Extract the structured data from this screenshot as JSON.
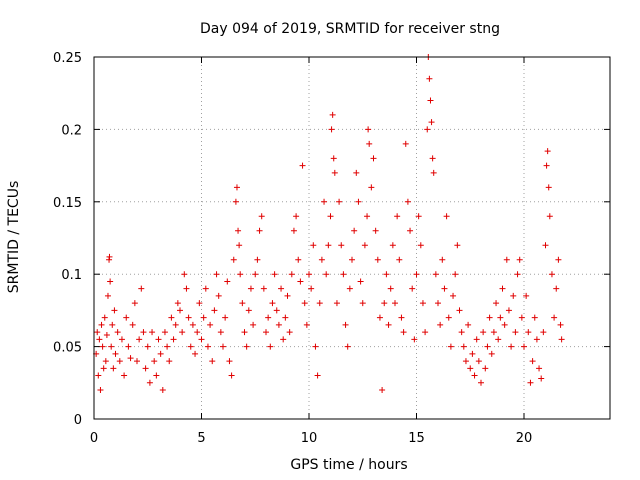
{
  "chart_data": {
    "type": "scatter",
    "title": "Day 094 of 2019, SRMTID for receiver stng",
    "xlabel": "GPS time / hours",
    "ylabel": "SRMTID / TECUs",
    "xlim": [
      0,
      24
    ],
    "ylim": [
      0,
      0.25
    ],
    "xticks": [
      0,
      5,
      10,
      15,
      20
    ],
    "yticks": [
      0,
      0.05,
      0.1,
      0.15,
      0.2,
      0.25
    ],
    "xtick_labels": [
      "0",
      "5",
      "10",
      "15",
      "20"
    ],
    "ytick_labels": [
      "0",
      "0.05",
      "0.1",
      "0.15",
      "0.2",
      "0.25"
    ],
    "grid": true,
    "marker": "+",
    "color": "#e00000",
    "series": [
      {
        "name": "stng",
        "points": [
          [
            0.1,
            0.045
          ],
          [
            0.15,
            0.06
          ],
          [
            0.2,
            0.03
          ],
          [
            0.25,
            0.055
          ],
          [
            0.3,
            0.02
          ],
          [
            0.35,
            0.065
          ],
          [
            0.4,
            0.05
          ],
          [
            0.45,
            0.035
          ],
          [
            0.5,
            0.07
          ],
          [
            0.55,
            0.04
          ],
          [
            0.6,
            0.058
          ],
          [
            0.65,
            0.085
          ],
          [
            0.7,
            0.11
          ],
          [
            0.72,
            0.112
          ],
          [
            0.75,
            0.095
          ],
          [
            0.8,
            0.05
          ],
          [
            0.85,
            0.065
          ],
          [
            0.9,
            0.035
          ],
          [
            0.95,
            0.075
          ],
          [
            1.0,
            0.045
          ],
          [
            1.1,
            0.06
          ],
          [
            1.2,
            0.04
          ],
          [
            1.3,
            0.055
          ],
          [
            1.4,
            0.03
          ],
          [
            1.5,
            0.07
          ],
          [
            1.6,
            0.05
          ],
          [
            1.7,
            0.042
          ],
          [
            1.8,
            0.065
          ],
          [
            1.9,
            0.08
          ],
          [
            2.0,
            0.04
          ],
          [
            2.1,
            0.055
          ],
          [
            2.2,
            0.09
          ],
          [
            2.3,
            0.06
          ],
          [
            2.4,
            0.035
          ],
          [
            2.5,
            0.05
          ],
          [
            2.6,
            0.025
          ],
          [
            2.7,
            0.06
          ],
          [
            2.8,
            0.04
          ],
          [
            2.9,
            0.03
          ],
          [
            3.0,
            0.055
          ],
          [
            3.1,
            0.045
          ],
          [
            3.2,
            0.02
          ],
          [
            3.3,
            0.06
          ],
          [
            3.4,
            0.05
          ],
          [
            3.5,
            0.04
          ],
          [
            3.6,
            0.07
          ],
          [
            3.7,
            0.055
          ],
          [
            3.8,
            0.065
          ],
          [
            3.9,
            0.08
          ],
          [
            4.0,
            0.075
          ],
          [
            4.1,
            0.06
          ],
          [
            4.2,
            0.1
          ],
          [
            4.3,
            0.09
          ],
          [
            4.4,
            0.07
          ],
          [
            4.5,
            0.05
          ],
          [
            4.6,
            0.065
          ],
          [
            4.7,
            0.045
          ],
          [
            4.8,
            0.06
          ],
          [
            4.9,
            0.08
          ],
          [
            5.0,
            0.055
          ],
          [
            5.1,
            0.07
          ],
          [
            5.2,
            0.09
          ],
          [
            5.3,
            0.05
          ],
          [
            5.4,
            0.065
          ],
          [
            5.5,
            0.04
          ],
          [
            5.6,
            0.075
          ],
          [
            5.7,
            0.1
          ],
          [
            5.8,
            0.085
          ],
          [
            5.9,
            0.06
          ],
          [
            6.0,
            0.05
          ],
          [
            6.1,
            0.07
          ],
          [
            6.2,
            0.095
          ],
          [
            6.3,
            0.04
          ],
          [
            6.4,
            0.03
          ],
          [
            6.5,
            0.11
          ],
          [
            6.6,
            0.15
          ],
          [
            6.65,
            0.16
          ],
          [
            6.7,
            0.13
          ],
          [
            6.75,
            0.12
          ],
          [
            6.8,
            0.1
          ],
          [
            6.9,
            0.08
          ],
          [
            7.0,
            0.06
          ],
          [
            7.1,
            0.05
          ],
          [
            7.2,
            0.075
          ],
          [
            7.3,
            0.09
          ],
          [
            7.4,
            0.065
          ],
          [
            7.5,
            0.1
          ],
          [
            7.6,
            0.11
          ],
          [
            7.7,
            0.13
          ],
          [
            7.8,
            0.14
          ],
          [
            7.9,
            0.09
          ],
          [
            8.0,
            0.06
          ],
          [
            8.1,
            0.07
          ],
          [
            8.2,
            0.05
          ],
          [
            8.3,
            0.08
          ],
          [
            8.4,
            0.1
          ],
          [
            8.5,
            0.075
          ],
          [
            8.6,
            0.065
          ],
          [
            8.7,
            0.09
          ],
          [
            8.8,
            0.055
          ],
          [
            8.9,
            0.07
          ],
          [
            9.0,
            0.085
          ],
          [
            9.1,
            0.06
          ],
          [
            9.2,
            0.1
          ],
          [
            9.3,
            0.13
          ],
          [
            9.4,
            0.14
          ],
          [
            9.5,
            0.11
          ],
          [
            9.6,
            0.095
          ],
          [
            9.7,
            0.175
          ],
          [
            9.8,
            0.08
          ],
          [
            9.9,
            0.065
          ],
          [
            10.0,
            0.1
          ],
          [
            10.1,
            0.09
          ],
          [
            10.2,
            0.12
          ],
          [
            10.3,
            0.05
          ],
          [
            10.4,
            0.03
          ],
          [
            10.5,
            0.08
          ],
          [
            10.6,
            0.11
          ],
          [
            10.7,
            0.15
          ],
          [
            10.8,
            0.1
          ],
          [
            10.9,
            0.12
          ],
          [
            11.0,
            0.14
          ],
          [
            11.05,
            0.2
          ],
          [
            11.1,
            0.21
          ],
          [
            11.15,
            0.18
          ],
          [
            11.2,
            0.17
          ],
          [
            11.3,
            0.08
          ],
          [
            11.4,
            0.15
          ],
          [
            11.5,
            0.12
          ],
          [
            11.6,
            0.1
          ],
          [
            11.7,
            0.065
          ],
          [
            11.8,
            0.05
          ],
          [
            11.9,
            0.09
          ],
          [
            12.0,
            0.11
          ],
          [
            12.1,
            0.13
          ],
          [
            12.2,
            0.17
          ],
          [
            12.3,
            0.15
          ],
          [
            12.4,
            0.095
          ],
          [
            12.5,
            0.08
          ],
          [
            12.6,
            0.12
          ],
          [
            12.7,
            0.14
          ],
          [
            12.75,
            0.2
          ],
          [
            12.8,
            0.19
          ],
          [
            12.9,
            0.16
          ],
          [
            13.0,
            0.18
          ],
          [
            13.1,
            0.13
          ],
          [
            13.2,
            0.11
          ],
          [
            13.3,
            0.07
          ],
          [
            13.4,
            0.02
          ],
          [
            13.5,
            0.08
          ],
          [
            13.6,
            0.1
          ],
          [
            13.7,
            0.065
          ],
          [
            13.8,
            0.09
          ],
          [
            13.9,
            0.12
          ],
          [
            14.0,
            0.08
          ],
          [
            14.1,
            0.14
          ],
          [
            14.2,
            0.11
          ],
          [
            14.3,
            0.07
          ],
          [
            14.4,
            0.06
          ],
          [
            14.5,
            0.19
          ],
          [
            14.6,
            0.15
          ],
          [
            14.7,
            0.13
          ],
          [
            14.8,
            0.09
          ],
          [
            14.9,
            0.055
          ],
          [
            15.0,
            0.1
          ],
          [
            15.1,
            0.14
          ],
          [
            15.2,
            0.12
          ],
          [
            15.3,
            0.08
          ],
          [
            15.4,
            0.06
          ],
          [
            15.5,
            0.2
          ],
          [
            15.55,
            0.25
          ],
          [
            15.6,
            0.235
          ],
          [
            15.65,
            0.22
          ],
          [
            15.7,
            0.205
          ],
          [
            15.75,
            0.18
          ],
          [
            15.8,
            0.17
          ],
          [
            15.9,
            0.1
          ],
          [
            16.0,
            0.08
          ],
          [
            16.1,
            0.065
          ],
          [
            16.2,
            0.11
          ],
          [
            16.3,
            0.09
          ],
          [
            16.4,
            0.14
          ],
          [
            16.5,
            0.07
          ],
          [
            16.6,
            0.05
          ],
          [
            16.7,
            0.085
          ],
          [
            16.8,
            0.1
          ],
          [
            16.9,
            0.12
          ],
          [
            17.0,
            0.075
          ],
          [
            17.1,
            0.06
          ],
          [
            17.2,
            0.05
          ],
          [
            17.3,
            0.04
          ],
          [
            17.4,
            0.065
          ],
          [
            17.5,
            0.035
          ],
          [
            17.6,
            0.045
          ],
          [
            17.7,
            0.03
          ],
          [
            17.8,
            0.055
          ],
          [
            17.9,
            0.04
          ],
          [
            18.0,
            0.025
          ],
          [
            18.1,
            0.06
          ],
          [
            18.2,
            0.035
          ],
          [
            18.3,
            0.05
          ],
          [
            18.4,
            0.07
          ],
          [
            18.5,
            0.045
          ],
          [
            18.6,
            0.06
          ],
          [
            18.7,
            0.08
          ],
          [
            18.8,
            0.055
          ],
          [
            18.9,
            0.07
          ],
          [
            19.0,
            0.09
          ],
          [
            19.1,
            0.065
          ],
          [
            19.2,
            0.11
          ],
          [
            19.3,
            0.075
          ],
          [
            19.4,
            0.05
          ],
          [
            19.5,
            0.085
          ],
          [
            19.6,
            0.06
          ],
          [
            19.7,
            0.1
          ],
          [
            19.8,
            0.11
          ],
          [
            19.9,
            0.07
          ],
          [
            20.0,
            0.05
          ],
          [
            20.1,
            0.085
          ],
          [
            20.2,
            0.06
          ],
          [
            20.3,
            0.025
          ],
          [
            20.4,
            0.04
          ],
          [
            20.5,
            0.07
          ],
          [
            20.6,
            0.055
          ],
          [
            20.7,
            0.035
          ],
          [
            20.8,
            0.028
          ],
          [
            20.9,
            0.06
          ],
          [
            21.0,
            0.12
          ],
          [
            21.05,
            0.175
          ],
          [
            21.1,
            0.185
          ],
          [
            21.15,
            0.16
          ],
          [
            21.2,
            0.14
          ],
          [
            21.3,
            0.1
          ],
          [
            21.4,
            0.07
          ],
          [
            21.5,
            0.09
          ],
          [
            21.6,
            0.11
          ],
          [
            21.7,
            0.065
          ],
          [
            21.75,
            0.055
          ]
        ]
      }
    ]
  }
}
